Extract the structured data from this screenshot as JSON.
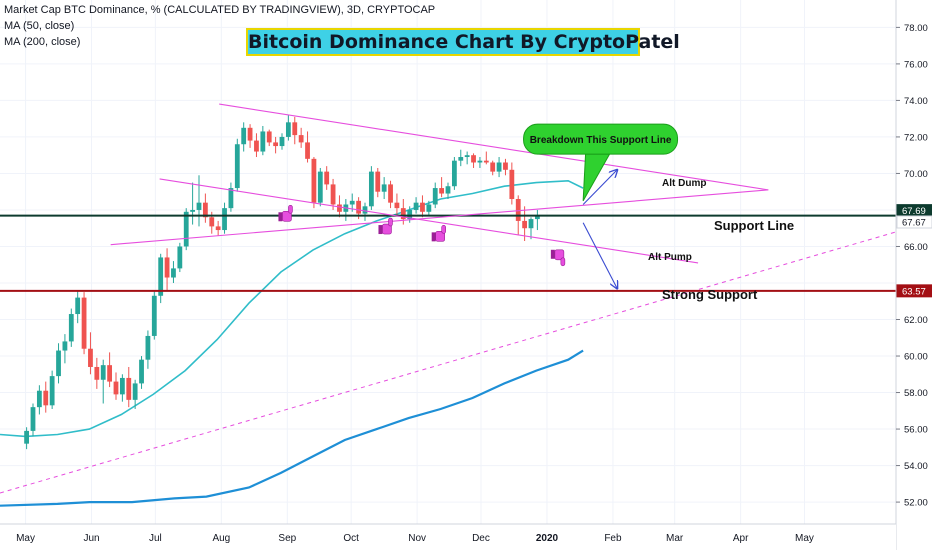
{
  "header": {
    "symbol_line": "Market Cap BTC Dominance, % (CALCULATED BY TRADINGVIEW), 3D, CRYPTOCAP",
    "ma50_label": "MA (50, close)",
    "ma200_label": "MA (200, close)"
  },
  "banner": {
    "title": "Bitcoin Dominance Chart By CryptoPatel"
  },
  "annotations": {
    "callout": "Breakdown This Support Line",
    "alt_dump": "Alt Dump",
    "alt_pump": "Alt Pump",
    "support_line": "Support Line",
    "strong_support": "Strong Support"
  },
  "colors": {
    "up": "#26a69a",
    "down": "#ef5350",
    "ma50": "#30bdc9",
    "ma200": "#1e8fd6",
    "channel": "#e64ede",
    "support": "#0d3b2e",
    "strong_support": "#a30f14",
    "callout": "#2fd12f",
    "arrow": "#3a4bd1"
  },
  "chart_data": {
    "type": "candlestick",
    "y_axis": {
      "ticks": [
        "52.00",
        "54.00",
        "56.00",
        "58.00",
        "60.00",
        "62.00",
        "64.00",
        "66.00",
        "68.00",
        "70.00",
        "72.00",
        "74.00",
        "76.00",
        "78.00"
      ],
      "range": [
        50.8,
        79.5
      ]
    },
    "x_axis": {
      "labels": [
        "May",
        "Jun",
        "Jul",
        "Aug",
        "Sep",
        "Oct",
        "Nov",
        "Dec",
        "2020",
        "Feb",
        "Mar",
        "Apr",
        "May"
      ],
      "label_days": [
        0,
        31,
        61,
        92,
        123,
        153,
        184,
        214,
        245,
        276,
        305,
        336,
        366
      ],
      "range_days": [
        -12,
        409
      ]
    },
    "price_tags": [
      {
        "value": 67.69,
        "label": "67.69",
        "color": "#0d3b2e"
      },
      {
        "value": 67.67,
        "label": "67.67",
        "color": "#ffffff",
        "text_color": "#131722"
      },
      {
        "value": 63.57,
        "label": "63.57",
        "color": "#a30f14"
      }
    ],
    "candles": [
      [
        55.2,
        56.1,
        54.9,
        55.9
      ],
      [
        55.9,
        57.4,
        55.6,
        57.2
      ],
      [
        57.2,
        58.4,
        56.8,
        58.1
      ],
      [
        58.1,
        58.6,
        56.9,
        57.3
      ],
      [
        57.3,
        59.2,
        57.1,
        58.9
      ],
      [
        58.9,
        60.7,
        58.5,
        60.3
      ],
      [
        60.3,
        61.2,
        59.6,
        60.8
      ],
      [
        60.8,
        62.6,
        60.5,
        62.3
      ],
      [
        62.3,
        63.6,
        61.8,
        63.2
      ],
      [
        63.2,
        63.5,
        60.1,
        60.4
      ],
      [
        60.4,
        61.3,
        59.0,
        59.4
      ],
      [
        59.4,
        59.9,
        58.2,
        58.7
      ],
      [
        58.7,
        59.8,
        57.4,
        59.5
      ],
      [
        59.5,
        60.2,
        58.3,
        58.6
      ],
      [
        58.6,
        59.1,
        57.6,
        57.9
      ],
      [
        57.9,
        59.0,
        57.5,
        58.8
      ],
      [
        58.8,
        59.4,
        57.2,
        57.6
      ],
      [
        57.6,
        58.7,
        57.1,
        58.5
      ],
      [
        58.5,
        60.0,
        58.2,
        59.8
      ],
      [
        59.8,
        61.4,
        59.3,
        61.1
      ],
      [
        61.1,
        63.6,
        60.9,
        63.3
      ],
      [
        63.3,
        65.6,
        62.9,
        65.4
      ],
      [
        65.4,
        65.9,
        63.6,
        64.3
      ],
      [
        64.3,
        65.2,
        64.0,
        64.8
      ],
      [
        64.8,
        66.2,
        64.6,
        66.0
      ],
      [
        66.0,
        68.1,
        65.8,
        67.9
      ],
      [
        67.9,
        69.5,
        67.2,
        68.0
      ],
      [
        68.0,
        69.9,
        67.1,
        68.4
      ],
      [
        68.4,
        68.9,
        67.3,
        67.6
      ],
      [
        67.6,
        67.9,
        66.7,
        67.1
      ],
      [
        67.1,
        67.4,
        66.6,
        66.9
      ],
      [
        66.9,
        68.4,
        66.7,
        68.1
      ],
      [
        68.1,
        69.5,
        67.9,
        69.2
      ],
      [
        69.2,
        71.9,
        69.0,
        71.6
      ],
      [
        71.6,
        72.8,
        71.2,
        72.5
      ],
      [
        72.5,
        72.7,
        71.4,
        71.8
      ],
      [
        71.8,
        72.2,
        70.9,
        71.2
      ],
      [
        71.2,
        72.6,
        71.0,
        72.3
      ],
      [
        72.3,
        72.4,
        71.5,
        71.7
      ],
      [
        71.7,
        72.0,
        71.1,
        71.5
      ],
      [
        71.5,
        72.2,
        71.3,
        72.0
      ],
      [
        72.0,
        73.2,
        71.8,
        72.8
      ],
      [
        72.8,
        73.1,
        71.6,
        72.1
      ],
      [
        72.1,
        72.5,
        71.4,
        71.7
      ],
      [
        71.7,
        72.3,
        70.6,
        70.8
      ],
      [
        70.8,
        70.9,
        68.1,
        68.4
      ],
      [
        68.4,
        70.3,
        68.2,
        70.1
      ],
      [
        70.1,
        70.4,
        69.1,
        69.4
      ],
      [
        69.4,
        69.7,
        68.0,
        68.3
      ],
      [
        68.3,
        68.8,
        67.6,
        67.9
      ],
      [
        67.9,
        68.6,
        67.4,
        68.3
      ],
      [
        68.3,
        68.9,
        67.9,
        68.5
      ],
      [
        68.5,
        68.7,
        67.5,
        67.8
      ],
      [
        67.8,
        68.4,
        67.4,
        68.2
      ],
      [
        68.2,
        70.4,
        68.0,
        70.1
      ],
      [
        70.1,
        70.3,
        68.7,
        69.0
      ],
      [
        69.0,
        69.8,
        68.6,
        69.4
      ],
      [
        69.4,
        69.6,
        68.1,
        68.4
      ],
      [
        68.4,
        68.9,
        67.7,
        68.1
      ],
      [
        68.1,
        68.6,
        67.2,
        67.5
      ],
      [
        67.5,
        68.2,
        67.3,
        68.0
      ],
      [
        68.0,
        68.7,
        67.8,
        68.4
      ],
      [
        68.4,
        68.8,
        67.6,
        67.9
      ],
      [
        67.9,
        68.5,
        67.7,
        68.3
      ],
      [
        68.3,
        69.5,
        68.1,
        69.2
      ],
      [
        69.2,
        69.8,
        68.7,
        68.9
      ],
      [
        68.9,
        69.5,
        68.6,
        69.3
      ],
      [
        69.3,
        70.9,
        69.1,
        70.7
      ],
      [
        70.7,
        71.3,
        70.4,
        70.9
      ],
      [
        70.9,
        71.2,
        70.5,
        71.0
      ],
      [
        71.0,
        71.1,
        70.3,
        70.6
      ],
      [
        70.6,
        70.9,
        70.3,
        70.7
      ],
      [
        70.7,
        71.2,
        70.5,
        70.6
      ],
      [
        70.6,
        70.7,
        69.9,
        70.1
      ],
      [
        70.1,
        70.9,
        69.8,
        70.6
      ],
      [
        70.6,
        70.8,
        69.9,
        70.2
      ],
      [
        70.2,
        70.6,
        68.3,
        68.6
      ],
      [
        68.6,
        68.8,
        66.6,
        67.4
      ],
      [
        67.4,
        68.2,
        66.3,
        67.0
      ],
      [
        67.0,
        67.6,
        66.4,
        67.5
      ],
      [
        67.5,
        68.0,
        66.9,
        67.7
      ]
    ],
    "ma50": [
      [
        -12,
        55.7
      ],
      [
        0,
        55.6
      ],
      [
        15,
        55.7
      ],
      [
        30,
        56.0
      ],
      [
        45,
        56.8
      ],
      [
        60,
        57.9
      ],
      [
        75,
        59.2
      ],
      [
        90,
        60.9
      ],
      [
        105,
        62.9
      ],
      [
        120,
        64.6
      ],
      [
        135,
        65.8
      ],
      [
        150,
        66.7
      ],
      [
        165,
        67.4
      ],
      [
        180,
        68.0
      ],
      [
        195,
        68.6
      ],
      [
        210,
        68.9
      ],
      [
        225,
        69.3
      ],
      [
        240,
        69.5
      ],
      [
        255,
        69.6
      ],
      [
        262,
        69.2
      ]
    ],
    "ma200": [
      [
        -12,
        51.8
      ],
      [
        15,
        51.9
      ],
      [
        30,
        52.0
      ],
      [
        50,
        52.0
      ],
      [
        70,
        52.2
      ],
      [
        85,
        52.3
      ],
      [
        105,
        52.8
      ],
      [
        120,
        53.6
      ],
      [
        135,
        54.5
      ],
      [
        150,
        55.4
      ],
      [
        165,
        56.0
      ],
      [
        180,
        56.6
      ],
      [
        195,
        57.1
      ],
      [
        210,
        57.7
      ],
      [
        225,
        58.5
      ],
      [
        240,
        59.2
      ],
      [
        255,
        59.8
      ],
      [
        262,
        60.3
      ]
    ],
    "levels": [
      {
        "name": "support_line",
        "value": 67.69
      },
      {
        "name": "strong_support",
        "value": 63.57
      }
    ],
    "channel_lines": [
      [
        [
          91,
          73.8
        ],
        [
          349,
          69.1
        ]
      ],
      [
        [
          63,
          69.7
        ],
        [
          316,
          65.1
        ]
      ],
      [
        [
          40,
          66.1
        ],
        [
          349,
          69.1
        ]
      ]
    ],
    "trendline_dotted": [
      [
        -12,
        52.5
      ],
      [
        409,
        66.8
      ]
    ],
    "arrows": [
      [
        [
          262,
          68.3
        ],
        [
          278,
          70.2
        ]
      ],
      [
        [
          262,
          67.3
        ],
        [
          278,
          63.7
        ]
      ]
    ]
  }
}
